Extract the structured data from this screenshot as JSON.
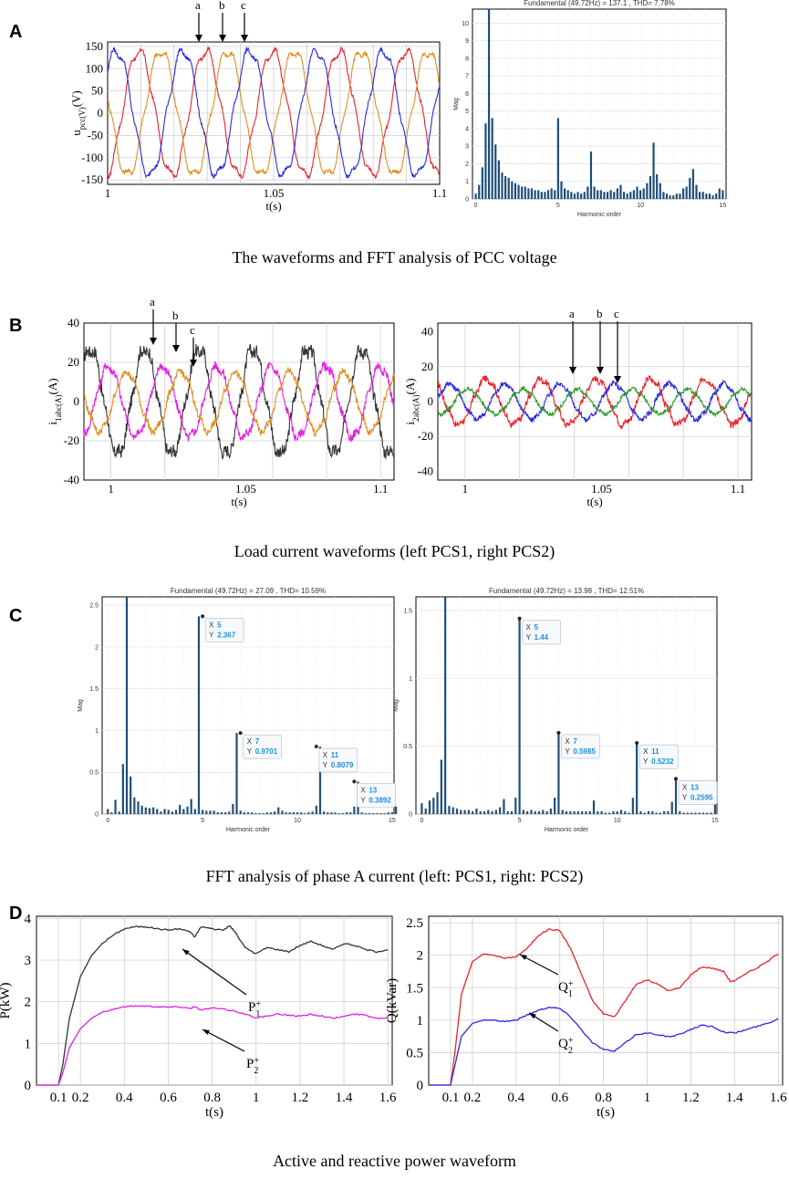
{
  "panels": {
    "A": "A",
    "B": "B",
    "C": "C",
    "D": "D"
  },
  "captions": {
    "A": "The waveforms and FFT analysis of PCC voltage",
    "B": "Load current waveforms (left PCS1, right PCS2)",
    "C": "FFT analysis of phase A current (left: PCS1, right: PCS2)",
    "D": "Active and reactive power waveform"
  },
  "colors": {
    "red": "#e8232b",
    "blue": "#2a2ae0",
    "orange": "#e09020",
    "black": "#333333",
    "magenta": "#e020e0",
    "green": "#2a9a2a",
    "bar": "#1f4e79",
    "grid": "#cfcfcf"
  },
  "chart_data": [
    {
      "id": "A-left",
      "type": "line",
      "title": "",
      "xlabel": "t(s)",
      "ylabel": "u_pcc(V)",
      "xlim": [
        1,
        1.1
      ],
      "ylim": [
        -160,
        160
      ],
      "xticks": [
        "1",
        "1.05",
        "1.1"
      ],
      "yticks": [
        "150",
        "100",
        "50",
        "0",
        "-50",
        "-100",
        "-150"
      ],
      "series": [
        {
          "name": "phase a",
          "amplitude": 140,
          "color": "red"
        },
        {
          "name": "phase b",
          "amplitude": 140,
          "color": "orange"
        },
        {
          "name": "phase c",
          "amplitude": 140,
          "color": "blue"
        }
      ],
      "frequency_hz": 49.72,
      "annotations": [
        "a",
        "b",
        "c"
      ]
    },
    {
      "id": "A-right",
      "type": "bar",
      "title": "Fundamental (49.72Hz) = 137.1 , THD= 7.78%",
      "xlabel": "Harmonic order",
      "ylabel": "Mag",
      "xlim": [
        -0.2,
        15.2
      ],
      "ylim": [
        0,
        10.8
      ],
      "xticks": [
        "0",
        "5",
        "10",
        "15"
      ],
      "yticks": [
        "0",
        "1",
        "2",
        "3",
        "4",
        "5",
        "6",
        "7",
        "8",
        "9",
        "10"
      ],
      "values": [
        0.3,
        0.8,
        1.8,
        4.3,
        10.8,
        4.6,
        3.1,
        2.2,
        1.5,
        1.3,
        1.2,
        1.0,
        0.9,
        0.8,
        0.7,
        0.7,
        0.6,
        0.6,
        0.5,
        0.5,
        0.4,
        0.4,
        0.5,
        0.6,
        0.5,
        4.6,
        1.0,
        0.6,
        0.5,
        0.4,
        0.3,
        0.4,
        0.3,
        0.4,
        0.7,
        2.7,
        0.7,
        0.5,
        0.5,
        0.4,
        0.4,
        0.5,
        0.4,
        0.6,
        0.8,
        0.4,
        0.3,
        0.4,
        0.5,
        0.7,
        0.5,
        0.6,
        0.9,
        1.3,
        3.2,
        1.4,
        0.9,
        0.4,
        0.3,
        0.2,
        0.2,
        0.3,
        0.3,
        0.6,
        0.7,
        1.2,
        1.7,
        0.8,
        0.4,
        0.4,
        0.3,
        0.3,
        0.2,
        0.3,
        0.6,
        0.5
      ]
    },
    {
      "id": "B-left",
      "type": "line",
      "xlabel": "t(s)",
      "ylabel": "i_1abc(A)",
      "xlim": [
        0.99,
        1.105
      ],
      "ylim": [
        -40,
        40
      ],
      "xticks": [
        "1",
        "1.05",
        "1.1"
      ],
      "yticks": [
        "40",
        "20",
        "0",
        "-20",
        "-40"
      ],
      "series": [
        {
          "name": "black",
          "amplitude": 27,
          "color": "black"
        },
        {
          "name": "magenta",
          "amplitude": 18,
          "color": "magenta"
        },
        {
          "name": "orange",
          "amplitude": 15,
          "color": "orange"
        }
      ],
      "annotations": [
        "a",
        "b",
        "c"
      ]
    },
    {
      "id": "B-right",
      "type": "line",
      "xlabel": "t(s)",
      "ylabel": "i_2abc(A)",
      "xlim": [
        0.99,
        1.105
      ],
      "ylim": [
        -45,
        45
      ],
      "xticks": [
        "1",
        "1.05",
        "1.1"
      ],
      "yticks": [
        "40",
        "20",
        "0",
        "-20",
        "-40"
      ],
      "series": [
        {
          "name": "red",
          "amplitude": 13,
          "color": "red"
        },
        {
          "name": "blue",
          "amplitude": 10,
          "color": "blue"
        },
        {
          "name": "green",
          "amplitude": 7,
          "color": "green"
        }
      ],
      "annotations": [
        "a",
        "b",
        "c"
      ]
    },
    {
      "id": "C-left",
      "type": "bar",
      "title": "Fundamental (49.72Hz) = 27.09 , THD= 10.59%",
      "xlabel": "Harmonic order",
      "ylabel": "Mag",
      "xlim": [
        -0.3,
        15.1
      ],
      "ylim": [
        0,
        2.6
      ],
      "xticks": [
        "0",
        "5",
        "10",
        "15"
      ],
      "yticks": [
        "0",
        "0.5",
        "1",
        "1.5",
        "2",
        "2.5"
      ],
      "values": [
        0.06,
        0.02,
        0.17,
        0.03,
        0.6,
        2.6,
        0.45,
        0.2,
        0.15,
        0.1,
        0.08,
        0.07,
        0.08,
        0.06,
        0.03,
        0.06,
        0.05,
        0.03,
        0.05,
        0.11,
        0.06,
        0.09,
        0.18,
        0.06,
        2.367,
        0.05,
        0.04,
        0.04,
        0.04,
        0.02,
        0.02,
        0.02,
        0.03,
        0.12,
        0.9701,
        0.04,
        0.02,
        0.02,
        0.02,
        0.01,
        0.01,
        0.01,
        0.02,
        0.02,
        0.03,
        0.08,
        0.04,
        0.02,
        0.02,
        0.02,
        0.02,
        0.02,
        0.01,
        0.02,
        0.03,
        0.1,
        0.8079,
        0.03,
        0.02,
        0.02,
        0.02,
        0.01,
        0.01,
        0.02,
        0.02,
        0.09,
        0.3892,
        0.02,
        0.01,
        0.01,
        0.01,
        0.01,
        0.01,
        0.01,
        0.02,
        0.02,
        0.09
      ],
      "datatips": [
        {
          "x": "5",
          "y": "2.367"
        },
        {
          "x": "7",
          "y": "0.9701"
        },
        {
          "x": "11",
          "y": "0.8079"
        },
        {
          "x": "13",
          "y": "0.3892"
        }
      ]
    },
    {
      "id": "C-right",
      "type": "bar",
      "title": "Fundamental (49.72Hz) = 13.98 , THD= 12.51%",
      "xlabel": "Harmonic order",
      "ylabel": "Mag",
      "xlim": [
        -0.3,
        15.1
      ],
      "ylim": [
        0,
        1.6
      ],
      "xticks": [
        "0",
        "5",
        "10",
        "15"
      ],
      "yticks": [
        "0",
        "0.5",
        "1",
        "1.5"
      ],
      "values": [
        0.08,
        0.04,
        0.1,
        0.12,
        0.16,
        0.4,
        1.6,
        0.06,
        0.05,
        0.04,
        0.03,
        0.03,
        0.03,
        0.02,
        0.04,
        0.02,
        0.02,
        0.03,
        0.02,
        0.03,
        0.05,
        0.11,
        0.02,
        0.02,
        0.12,
        1.44,
        0.03,
        0.02,
        0.03,
        0.02,
        0.02,
        0.03,
        0.02,
        0.04,
        0.12,
        0.5985,
        0.03,
        0.02,
        0.02,
        0.02,
        0.02,
        0.02,
        0.02,
        0.02,
        0.1,
        0.02,
        0.02,
        0.01,
        0.01,
        0.02,
        0.02,
        0.03,
        0.02,
        0.01,
        0.12,
        0.5232,
        0.02,
        0.01,
        0.02,
        0.02,
        0.01,
        0.01,
        0.02,
        0.02,
        0.09,
        0.2595,
        0.02,
        0.01,
        0.01,
        0.01,
        0.01,
        0.01,
        0.01,
        0.01,
        0.01,
        0.08
      ],
      "datatips": [
        {
          "x": "5",
          "y": "1.44"
        },
        {
          "x": "7",
          "y": "0.5985"
        },
        {
          "x": "11",
          "y": "0.5232"
        },
        {
          "x": "13",
          "y": "0.2595"
        }
      ]
    },
    {
      "id": "D-left",
      "type": "line",
      "xlabel": "t(s)",
      "ylabel": "P(kW)",
      "xlim": [
        0,
        1.62
      ],
      "ylim": [
        0,
        4.05
      ],
      "xticks": [
        "0.1",
        "0.2",
        "0.4",
        "0.6",
        "0.8",
        "1",
        "1.2",
        "1.4",
        "1.6"
      ],
      "yticks": [
        "0",
        "1",
        "2",
        "3",
        "4"
      ],
      "series": [
        {
          "name": "P1+",
          "color": "black",
          "x": [
            0,
            0.1,
            0.12,
            0.15,
            0.2,
            0.25,
            0.3,
            0.35,
            0.4,
            0.45,
            0.5,
            0.55,
            0.6,
            0.65,
            0.7,
            0.72,
            0.75,
            0.8,
            0.85,
            0.88,
            0.9,
            0.95,
            1.0,
            1.05,
            1.1,
            1.15,
            1.2,
            1.25,
            1.3,
            1.35,
            1.4,
            1.45,
            1.5,
            1.55,
            1.6
          ],
          "y": [
            0,
            0,
            0.5,
            1.6,
            2.6,
            3.1,
            3.4,
            3.6,
            3.75,
            3.8,
            3.8,
            3.75,
            3.72,
            3.75,
            3.68,
            3.55,
            3.8,
            3.75,
            3.72,
            3.82,
            3.7,
            3.3,
            3.15,
            3.3,
            3.25,
            3.2,
            3.35,
            3.45,
            3.35,
            3.25,
            3.4,
            3.35,
            3.25,
            3.2,
            3.25
          ]
        },
        {
          "name": "P2+",
          "color": "magenta",
          "x": [
            0,
            0.1,
            0.12,
            0.15,
            0.2,
            0.25,
            0.3,
            0.35,
            0.4,
            0.45,
            0.5,
            0.55,
            0.6,
            0.65,
            0.7,
            0.72,
            0.75,
            0.8,
            0.85,
            0.9,
            0.95,
            1.0,
            1.05,
            1.1,
            1.15,
            1.2,
            1.25,
            1.3,
            1.35,
            1.4,
            1.45,
            1.5,
            1.55,
            1.6
          ],
          "y": [
            0,
            0,
            0.3,
            0.9,
            1.35,
            1.6,
            1.75,
            1.82,
            1.88,
            1.9,
            1.9,
            1.88,
            1.87,
            1.88,
            1.84,
            1.88,
            1.8,
            1.85,
            1.82,
            1.78,
            1.7,
            1.62,
            1.65,
            1.7,
            1.68,
            1.65,
            1.7,
            1.66,
            1.6,
            1.65,
            1.7,
            1.68,
            1.6,
            1.62
          ]
        }
      ],
      "labels": {
        "p1": "P",
        "p1_sub": "1",
        "p1_sup": "+",
        "p2": "P",
        "p2_sub": "2",
        "p2_sup": "+"
      }
    },
    {
      "id": "D-right",
      "type": "line",
      "xlabel": "t(s)",
      "ylabel": "Q(kVar)",
      "xlim": [
        0,
        1.62
      ],
      "ylim": [
        0,
        2.6
      ],
      "xticks": [
        "0.1",
        "0.2",
        "0.4",
        "0.6",
        "0.8",
        "1",
        "1.2",
        "1.4",
        "1.6"
      ],
      "yticks": [
        "0",
        "0.5",
        "1",
        "1.5",
        "2",
        "2.5"
      ],
      "series": [
        {
          "name": "Q1+",
          "color": "red",
          "x": [
            0,
            0.1,
            0.12,
            0.15,
            0.2,
            0.25,
            0.3,
            0.35,
            0.4,
            0.45,
            0.5,
            0.55,
            0.6,
            0.65,
            0.7,
            0.75,
            0.8,
            0.85,
            0.9,
            0.95,
            1.0,
            1.05,
            1.1,
            1.15,
            1.2,
            1.25,
            1.3,
            1.35,
            1.38,
            1.4,
            1.45,
            1.5,
            1.55,
            1.6
          ],
          "y": [
            0,
            0,
            0.5,
            1.4,
            1.9,
            2.02,
            2.0,
            1.95,
            1.98,
            2.1,
            2.3,
            2.4,
            2.38,
            2.1,
            1.7,
            1.3,
            1.1,
            1.05,
            1.3,
            1.55,
            1.62,
            1.55,
            1.45,
            1.5,
            1.7,
            1.82,
            1.8,
            1.75,
            1.6,
            1.6,
            1.72,
            1.8,
            1.9,
            2.03
          ]
        },
        {
          "name": "Q2+",
          "color": "blue",
          "x": [
            0,
            0.1,
            0.12,
            0.15,
            0.2,
            0.25,
            0.3,
            0.35,
            0.4,
            0.45,
            0.5,
            0.55,
            0.6,
            0.65,
            0.7,
            0.75,
            0.8,
            0.85,
            0.9,
            0.95,
            1.0,
            1.05,
            1.1,
            1.15,
            1.2,
            1.25,
            1.3,
            1.35,
            1.4,
            1.45,
            1.5,
            1.55,
            1.6
          ],
          "y": [
            0,
            0,
            0.3,
            0.75,
            0.95,
            1.0,
            1.0,
            0.98,
            1.0,
            1.08,
            1.15,
            1.2,
            1.18,
            1.05,
            0.85,
            0.65,
            0.55,
            0.52,
            0.65,
            0.78,
            0.8,
            0.78,
            0.74,
            0.78,
            0.86,
            0.92,
            0.9,
            0.82,
            0.8,
            0.85,
            0.9,
            0.95,
            1.02
          ]
        }
      ],
      "labels": {
        "q1": "Q",
        "q1_sub": "1",
        "q1_sup": "+",
        "q2": "Q",
        "q2_sub": "2",
        "q2_sup": "+"
      }
    }
  ]
}
